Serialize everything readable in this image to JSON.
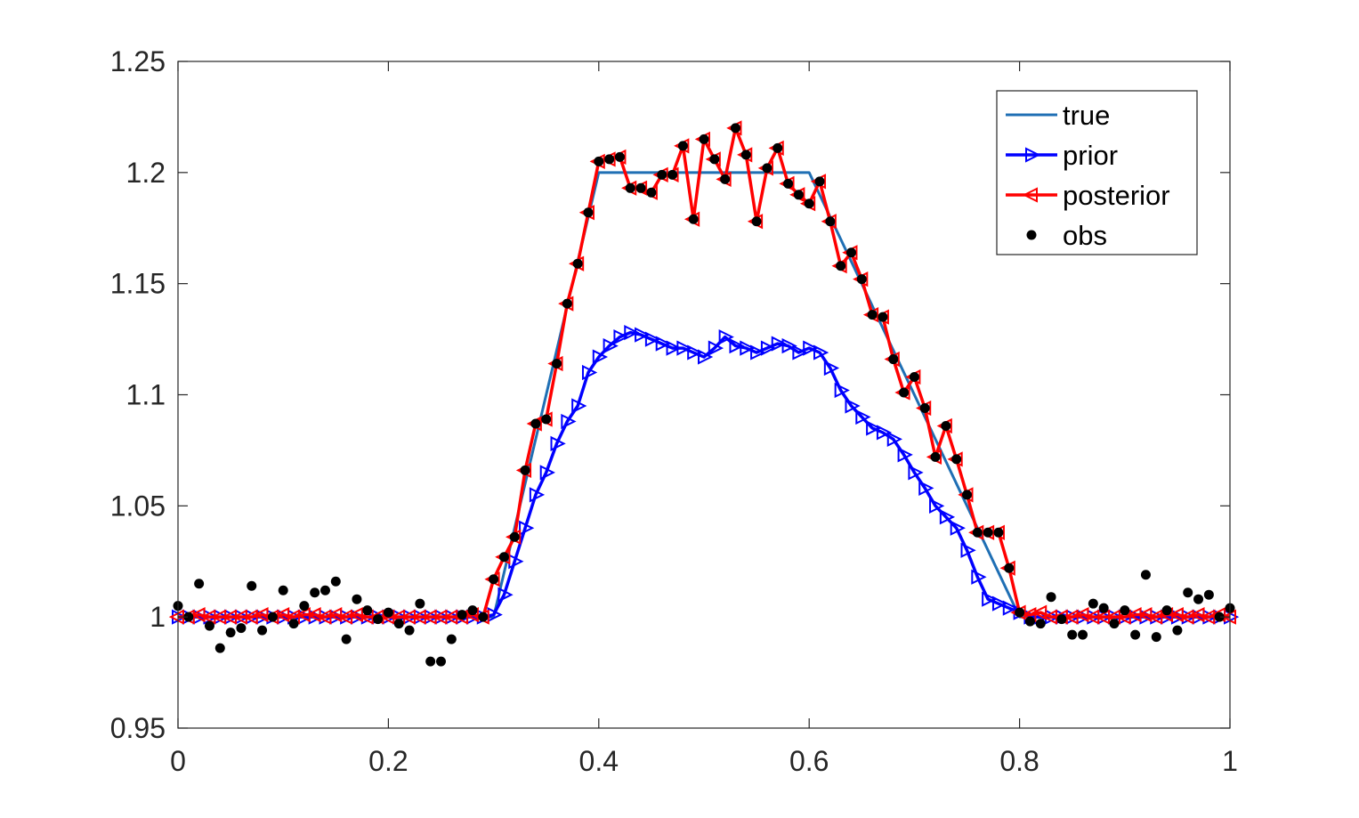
{
  "chart_data": {
    "type": "line",
    "title": "",
    "xlabel": "",
    "ylabel": "",
    "xlim": [
      0,
      1
    ],
    "ylim": [
      0.95,
      1.25
    ],
    "grid": false,
    "legend_position": "top-right",
    "x_ticks": [
      0,
      0.2,
      0.4,
      0.6,
      0.8,
      1
    ],
    "x_tick_labels": [
      "0",
      "0.2",
      "0.4",
      "0.6",
      "0.8",
      "1"
    ],
    "y_ticks": [
      0.95,
      1.0,
      1.05,
      1.1,
      1.15,
      1.2,
      1.25
    ],
    "y_tick_labels": [
      "0.95",
      "1",
      "1.05",
      "1.1",
      "1.15",
      "1.2",
      "1.25"
    ],
    "series": [
      {
        "name": "true",
        "color": "#1f6fb4",
        "marker": "none",
        "x": [
          0,
          0.3,
          0.4,
          0.6,
          0.8,
          1
        ],
        "y": [
          1.0,
          1.0,
          1.2,
          1.2,
          1.0,
          1.0
        ]
      },
      {
        "name": "prior",
        "color": "#0000ff",
        "marker": "triangle-right",
        "x": [
          0,
          0.01,
          0.02,
          0.03,
          0.04,
          0.05,
          0.06,
          0.07,
          0.08,
          0.09,
          0.1,
          0.11,
          0.12,
          0.13,
          0.14,
          0.15,
          0.16,
          0.17,
          0.18,
          0.19,
          0.2,
          0.21,
          0.22,
          0.23,
          0.24,
          0.25,
          0.26,
          0.27,
          0.28,
          0.29,
          0.3,
          0.31,
          0.32,
          0.33,
          0.34,
          0.35,
          0.36,
          0.37,
          0.38,
          0.39,
          0.4,
          0.41,
          0.42,
          0.43,
          0.44,
          0.45,
          0.46,
          0.47,
          0.48,
          0.49,
          0.5,
          0.51,
          0.52,
          0.53,
          0.54,
          0.55,
          0.56,
          0.57,
          0.58,
          0.59,
          0.6,
          0.61,
          0.62,
          0.63,
          0.64,
          0.65,
          0.66,
          0.67,
          0.68,
          0.69,
          0.7,
          0.71,
          0.72,
          0.73,
          0.74,
          0.75,
          0.76,
          0.77,
          0.78,
          0.79,
          0.8,
          0.81,
          0.82,
          0.83,
          0.84,
          0.85,
          0.86,
          0.87,
          0.88,
          0.89,
          0.9,
          0.91,
          0.92,
          0.93,
          0.94,
          0.95,
          0.96,
          0.97,
          0.98,
          0.99,
          1.0
        ],
        "y": [
          1.0,
          1.0,
          1.0,
          1.0,
          1.0,
          1.0,
          1.0,
          1.0,
          1.0,
          1.0,
          1.0,
          1.0,
          1.0,
          1.0,
          1.0,
          1.0,
          1.0,
          1.0,
          1.0,
          1.0,
          1.0,
          1.0,
          1.0,
          1.0,
          1.0,
          1.0,
          1.0,
          1.0,
          1.0,
          1.0,
          1.001,
          1.01,
          1.025,
          1.04,
          1.055,
          1.065,
          1.078,
          1.088,
          1.095,
          1.11,
          1.117,
          1.122,
          1.126,
          1.128,
          1.127,
          1.125,
          1.123,
          1.121,
          1.121,
          1.119,
          1.117,
          1.121,
          1.126,
          1.122,
          1.121,
          1.119,
          1.121,
          1.123,
          1.122,
          1.119,
          1.121,
          1.119,
          1.112,
          1.102,
          1.095,
          1.09,
          1.085,
          1.083,
          1.08,
          1.073,
          1.065,
          1.058,
          1.05,
          1.045,
          1.04,
          1.03,
          1.018,
          1.008,
          1.006,
          1.004,
          1.002,
          1.0,
          1.0,
          1.0,
          1.0,
          1.0,
          1.0,
          1.0,
          1.0,
          1.0,
          1.0,
          1.0,
          1.0,
          1.0,
          1.0,
          1.0,
          1.0,
          1.0,
          1.0,
          1.0,
          1.0
        ]
      },
      {
        "name": "posterior",
        "color": "#ff0000",
        "marker": "triangle-left",
        "x": [
          0,
          0.01,
          0.02,
          0.03,
          0.04,
          0.05,
          0.06,
          0.07,
          0.08,
          0.09,
          0.1,
          0.11,
          0.12,
          0.13,
          0.14,
          0.15,
          0.16,
          0.17,
          0.18,
          0.19,
          0.2,
          0.21,
          0.22,
          0.23,
          0.24,
          0.25,
          0.26,
          0.27,
          0.28,
          0.29,
          0.3,
          0.31,
          0.32,
          0.33,
          0.34,
          0.35,
          0.36,
          0.37,
          0.38,
          0.39,
          0.4,
          0.41,
          0.42,
          0.43,
          0.44,
          0.45,
          0.46,
          0.47,
          0.48,
          0.49,
          0.5,
          0.51,
          0.52,
          0.53,
          0.54,
          0.55,
          0.56,
          0.57,
          0.58,
          0.59,
          0.6,
          0.61,
          0.62,
          0.63,
          0.64,
          0.65,
          0.66,
          0.67,
          0.68,
          0.69,
          0.7,
          0.71,
          0.72,
          0.73,
          0.74,
          0.75,
          0.76,
          0.77,
          0.78,
          0.79,
          0.8,
          0.81,
          0.82,
          0.83,
          0.84,
          0.85,
          0.86,
          0.87,
          0.88,
          0.89,
          0.9,
          0.91,
          0.92,
          0.93,
          0.94,
          0.95,
          0.96,
          0.97,
          0.98,
          0.99,
          1.0
        ],
        "y": [
          1.0,
          1.0,
          1.001,
          1.0,
          1.0,
          1.0,
          1.0,
          1.0,
          1.001,
          1.0,
          1.001,
          1.0,
          1.001,
          1.001,
          1.0,
          1.001,
          1.0,
          1.001,
          1.0,
          1.0,
          1.0,
          1.0,
          1.0,
          1.0,
          1.0,
          1.0,
          1.0,
          1.0,
          1.001,
          1.0,
          1.017,
          1.027,
          1.036,
          1.066,
          1.087,
          1.089,
          1.114,
          1.141,
          1.159,
          1.182,
          1.205,
          1.206,
          1.207,
          1.193,
          1.193,
          1.191,
          1.199,
          1.199,
          1.212,
          1.179,
          1.215,
          1.206,
          1.197,
          1.22,
          1.208,
          1.178,
          1.202,
          1.211,
          1.195,
          1.19,
          1.186,
          1.196,
          1.178,
          1.158,
          1.164,
          1.152,
          1.136,
          1.135,
          1.116,
          1.101,
          1.108,
          1.094,
          1.072,
          1.086,
          1.071,
          1.055,
          1.038,
          1.038,
          1.038,
          1.022,
          1.002,
          1.001,
          1.002,
          1.0,
          1.0,
          1.0,
          1.001,
          1.0,
          1.0,
          1.0,
          1.0,
          1.001,
          1.001,
          1.0,
          1.001,
          1.001,
          1.0,
          1.001,
          1.0,
          1.001,
          1.0
        ]
      },
      {
        "name": "obs",
        "color": "#000000",
        "marker": "dot",
        "x": [
          0,
          0.01,
          0.02,
          0.03,
          0.04,
          0.05,
          0.06,
          0.07,
          0.08,
          0.09,
          0.1,
          0.11,
          0.12,
          0.13,
          0.14,
          0.15,
          0.16,
          0.17,
          0.18,
          0.19,
          0.2,
          0.21,
          0.22,
          0.23,
          0.24,
          0.25,
          0.26,
          0.27,
          0.28,
          0.29,
          0.3,
          0.31,
          0.32,
          0.33,
          0.34,
          0.35,
          0.36,
          0.37,
          0.38,
          0.39,
          0.4,
          0.41,
          0.42,
          0.43,
          0.44,
          0.45,
          0.46,
          0.47,
          0.48,
          0.49,
          0.5,
          0.51,
          0.52,
          0.53,
          0.54,
          0.55,
          0.56,
          0.57,
          0.58,
          0.59,
          0.6,
          0.61,
          0.62,
          0.63,
          0.64,
          0.65,
          0.66,
          0.67,
          0.68,
          0.69,
          0.7,
          0.71,
          0.72,
          0.73,
          0.74,
          0.75,
          0.76,
          0.77,
          0.78,
          0.79,
          0.8,
          0.81,
          0.82,
          0.83,
          0.84,
          0.85,
          0.86,
          0.87,
          0.88,
          0.89,
          0.9,
          0.91,
          0.92,
          0.93,
          0.94,
          0.95,
          0.96,
          0.97,
          0.98,
          0.99,
          1.0
        ],
        "y": [
          1.005,
          1.0,
          1.015,
          0.996,
          0.986,
          0.993,
          0.995,
          1.014,
          0.994,
          1.0,
          1.012,
          0.997,
          1.005,
          1.011,
          1.012,
          1.016,
          0.99,
          1.008,
          1.003,
          0.999,
          1.002,
          0.997,
          0.994,
          1.006,
          0.98,
          0.98,
          0.99,
          1.001,
          1.003,
          1.0,
          1.017,
          1.027,
          1.036,
          1.066,
          1.087,
          1.089,
          1.114,
          1.141,
          1.159,
          1.182,
          1.205,
          1.206,
          1.207,
          1.193,
          1.193,
          1.191,
          1.199,
          1.199,
          1.212,
          1.179,
          1.215,
          1.206,
          1.197,
          1.22,
          1.208,
          1.178,
          1.202,
          1.211,
          1.195,
          1.19,
          1.186,
          1.196,
          1.178,
          1.158,
          1.164,
          1.152,
          1.136,
          1.135,
          1.116,
          1.101,
          1.108,
          1.094,
          1.072,
          1.086,
          1.071,
          1.055,
          1.038,
          1.038,
          1.038,
          1.022,
          1.002,
          0.998,
          0.997,
          1.009,
          0.999,
          0.992,
          0.992,
          1.006,
          1.004,
          0.997,
          1.003,
          0.992,
          1.019,
          0.991,
          1.003,
          0.994,
          1.011,
          1.008,
          1.01,
          1.0,
          1.004
        ]
      }
    ]
  }
}
